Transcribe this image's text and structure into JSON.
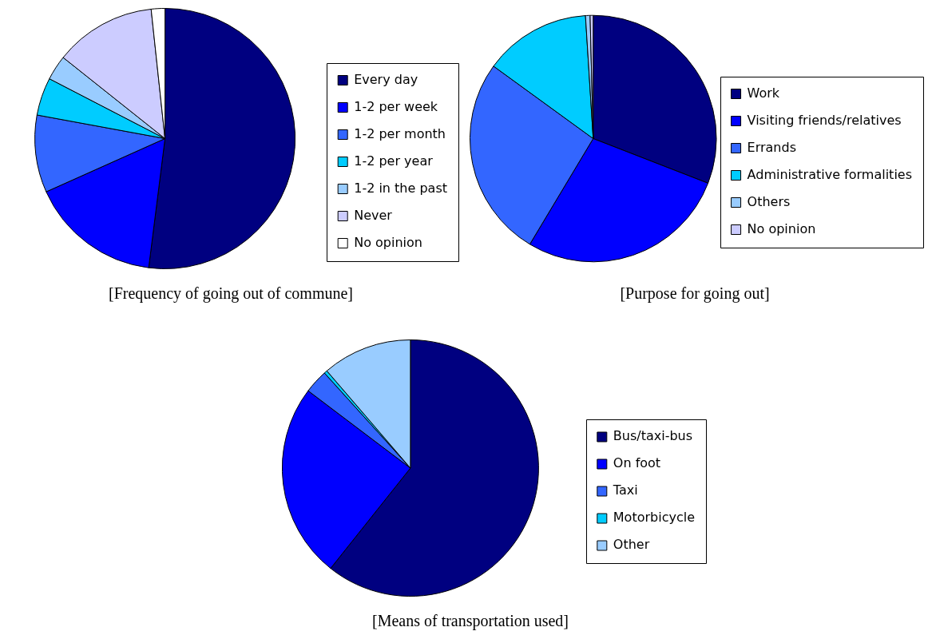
{
  "chart_data": [
    {
      "type": "pie",
      "title": "[Frequency of going out of commune]",
      "categories": [
        "Every day",
        "1-2 per week",
        "1-2 per month",
        "1-2 per year",
        "1-2 in the past",
        "Never",
        "No opinion"
      ],
      "values": [
        52,
        16.3,
        9.6,
        4.7,
        3.1,
        12.6,
        1.7
      ],
      "colors": [
        "#000080",
        "#0000ff",
        "#3366ff",
        "#00ccff",
        "#99ccff",
        "#ccccff",
        "#ffffff"
      ],
      "legend": "right"
    },
    {
      "type": "pie",
      "title": "[Purpose for going out]",
      "categories": [
        "Work",
        "Visiting friends/relatives",
        "Errands",
        "Administrative formalities",
        "Others",
        "No opinion"
      ],
      "values": [
        30.9,
        27.7,
        26.4,
        14,
        0.6,
        0.4
      ],
      "colors": [
        "#000080",
        "#0000ff",
        "#3366ff",
        "#00ccff",
        "#99ccff",
        "#ccccff"
      ],
      "legend": "right"
    },
    {
      "type": "pie",
      "title": "[Means of transportation used]",
      "categories": [
        "Bus/taxi-bus",
        "On foot",
        "Taxi",
        "Motorbicycle",
        "Other"
      ],
      "values": [
        60.7,
        24.6,
        3,
        0.4,
        11.3
      ],
      "colors": [
        "#000080",
        "#0000ff",
        "#3366ff",
        "#00ccff",
        "#99ccff"
      ],
      "legend": "right"
    }
  ]
}
